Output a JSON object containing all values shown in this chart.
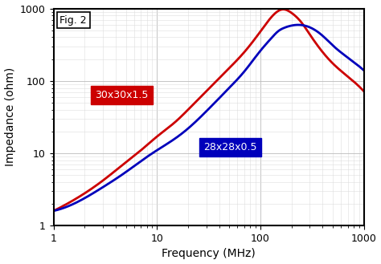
{
  "title": "",
  "xlabel": "Frequency (MHz)",
  "ylabel": "Impedance (ohm)",
  "xlim": [
    1,
    1000
  ],
  "ylim": [
    1,
    1000
  ],
  "fig2_label": "Fig. 2",
  "red_label": "30x30x1.5",
  "blue_label": "28x28x0.5",
  "red_color": "#cc0000",
  "blue_color": "#0000bb",
  "background_color": "#ffffff",
  "red_data_x": [
    1,
    2,
    3,
    5,
    7,
    10,
    15,
    20,
    30,
    50,
    70,
    100,
    130,
    150,
    170,
    200,
    250,
    300,
    400,
    500,
    700,
    1000
  ],
  "red_data_y": [
    1.6,
    2.8,
    4.2,
    7.5,
    11,
    17,
    27,
    40,
    72,
    150,
    250,
    480,
    780,
    930,
    970,
    870,
    640,
    440,
    250,
    175,
    115,
    72
  ],
  "blue_data_x": [
    1,
    2,
    3,
    5,
    7,
    10,
    15,
    20,
    30,
    50,
    70,
    100,
    130,
    150,
    170,
    200,
    250,
    300,
    400,
    500,
    700,
    1000
  ],
  "blue_data_y": [
    1.6,
    2.4,
    3.4,
    5.5,
    7.8,
    11,
    16,
    22,
    38,
    80,
    135,
    260,
    400,
    490,
    540,
    580,
    590,
    550,
    420,
    310,
    210,
    140
  ],
  "grid_major_color": "#bbbbbb",
  "grid_minor_color": "#dddddd",
  "linewidth": 2.0,
  "border_color": "#000000",
  "xlabel_fontsize": 10,
  "ylabel_fontsize": 10,
  "tick_fontsize": 9
}
